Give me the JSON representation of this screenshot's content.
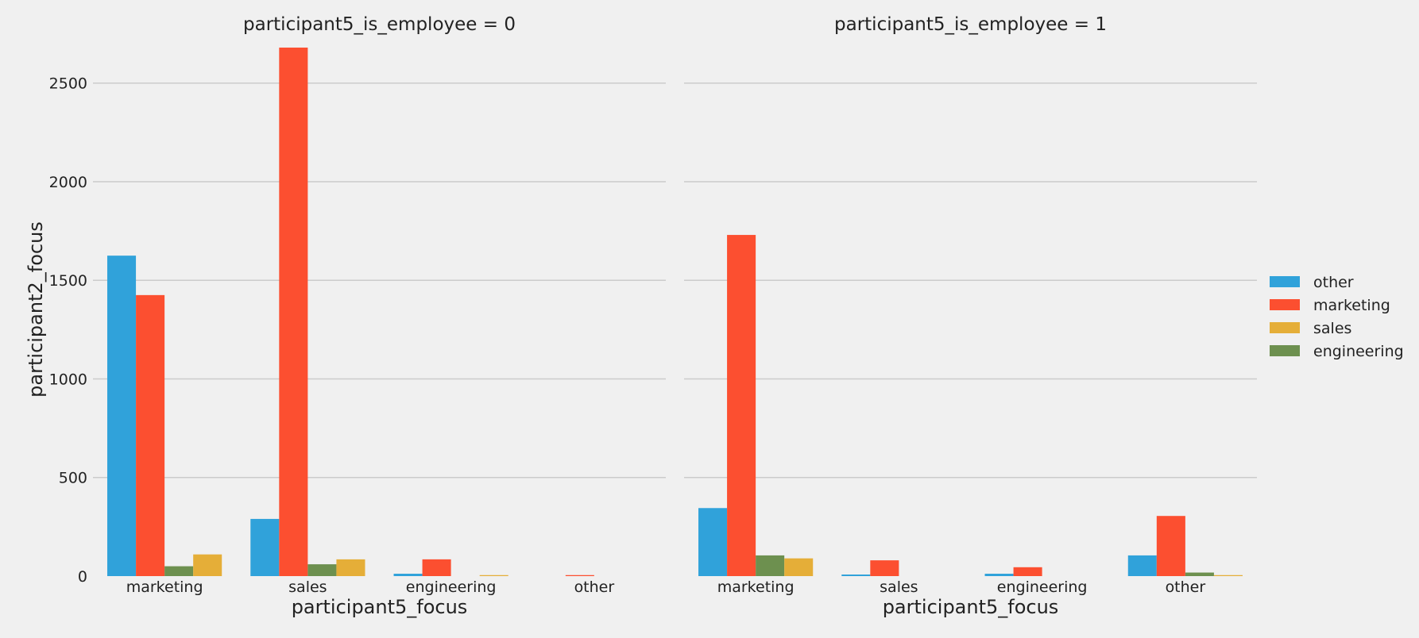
{
  "chart_data": {
    "type": "bar",
    "ylabel": "participant2_focus",
    "ylim": [
      0,
      2700
    ],
    "yticks": [
      0,
      500,
      1000,
      1500,
      2000,
      2500
    ],
    "grid": "horizontal",
    "legend_position": "right",
    "hue_order": [
      "other",
      "marketing",
      "engineering",
      "sales"
    ],
    "colors": {
      "other": "#30a2da",
      "marketing": "#fc4f30",
      "engineering": "#6d904f",
      "sales": "#e5ae38"
    },
    "hue_display_order": [
      "other",
      "marketing",
      "sales",
      "engineering"
    ],
    "panels": [
      {
        "title": "participant5_is_employee = 0",
        "xlabel": "participant5_focus",
        "categories": [
          "marketing",
          "sales",
          "engineering",
          "other"
        ],
        "series": [
          {
            "name": "other",
            "values": [
              1625,
              290,
              12,
              0
            ]
          },
          {
            "name": "marketing",
            "values": [
              1425,
              2680,
              85,
              5
            ]
          },
          {
            "name": "sales",
            "values": [
              110,
              85,
              5,
              0
            ]
          },
          {
            "name": "engineering",
            "values": [
              50,
              60,
              0,
              0
            ]
          }
        ]
      },
      {
        "title": "participant5_is_employee = 1",
        "xlabel": "participant5_focus",
        "categories": [
          "marketing",
          "sales",
          "engineering",
          "other"
        ],
        "series": [
          {
            "name": "other",
            "values": [
              345,
              8,
              12,
              105
            ]
          },
          {
            "name": "marketing",
            "values": [
              1730,
              80,
              45,
              305
            ]
          },
          {
            "name": "sales",
            "values": [
              90,
              0,
              0,
              5
            ]
          },
          {
            "name": "engineering",
            "values": [
              105,
              0,
              0,
              18
            ]
          }
        ]
      }
    ]
  }
}
